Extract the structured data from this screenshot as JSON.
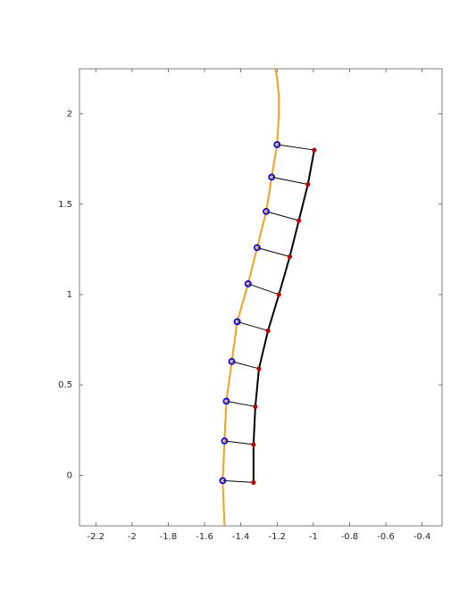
{
  "chart_data": {
    "type": "line",
    "xlim": [
      -2.29,
      -0.29
    ],
    "ylim": [
      -0.28,
      2.25
    ],
    "xticks": [
      -2.2,
      -2,
      -1.8,
      -1.6,
      -1.4,
      -1.2,
      -1,
      -0.8,
      -0.6,
      -0.4
    ],
    "yticks": [
      0,
      0.5,
      1,
      1.5,
      2
    ],
    "links": [
      1,
      2
    ],
    "series": [
      {
        "color": "#f5a01a",
        "line": true,
        "marker": "none",
        "x": [
          -1.49,
          -1.5,
          -1.49,
          -1.48,
          -1.45,
          -1.42,
          -1.36,
          -1.31,
          -1.26,
          -1.23,
          -1.2,
          -1.19,
          -1.19,
          -1.2,
          -1.21
        ],
        "values": [
          -0.28,
          -0.03,
          0.19,
          0.41,
          0.63,
          0.85,
          1.06,
          1.26,
          1.46,
          1.65,
          1.83,
          2.0,
          2.1,
          2.2,
          2.25
        ]
      },
      {
        "color": "#000000",
        "line": true,
        "marker": "dot",
        "marker_color": "#c00000",
        "x": [
          -0.995,
          -1.03,
          -1.08,
          -1.13,
          -1.19,
          -1.25,
          -1.3,
          -1.32,
          -1.33,
          -1.33
        ],
        "values": [
          1.8,
          1.61,
          1.41,
          1.21,
          1.0,
          0.8,
          0.59,
          0.38,
          0.17,
          -0.04
        ]
      },
      {
        "color": "#0000ff",
        "line": false,
        "marker": "circle",
        "x": [
          -1.2,
          -1.23,
          -1.26,
          -1.31,
          -1.36,
          -1.42,
          -1.45,
          -1.48,
          -1.49,
          -1.5
        ],
        "values": [
          1.83,
          1.65,
          1.46,
          1.26,
          1.06,
          0.85,
          0.63,
          0.41,
          0.19,
          -0.03
        ]
      }
    ]
  }
}
